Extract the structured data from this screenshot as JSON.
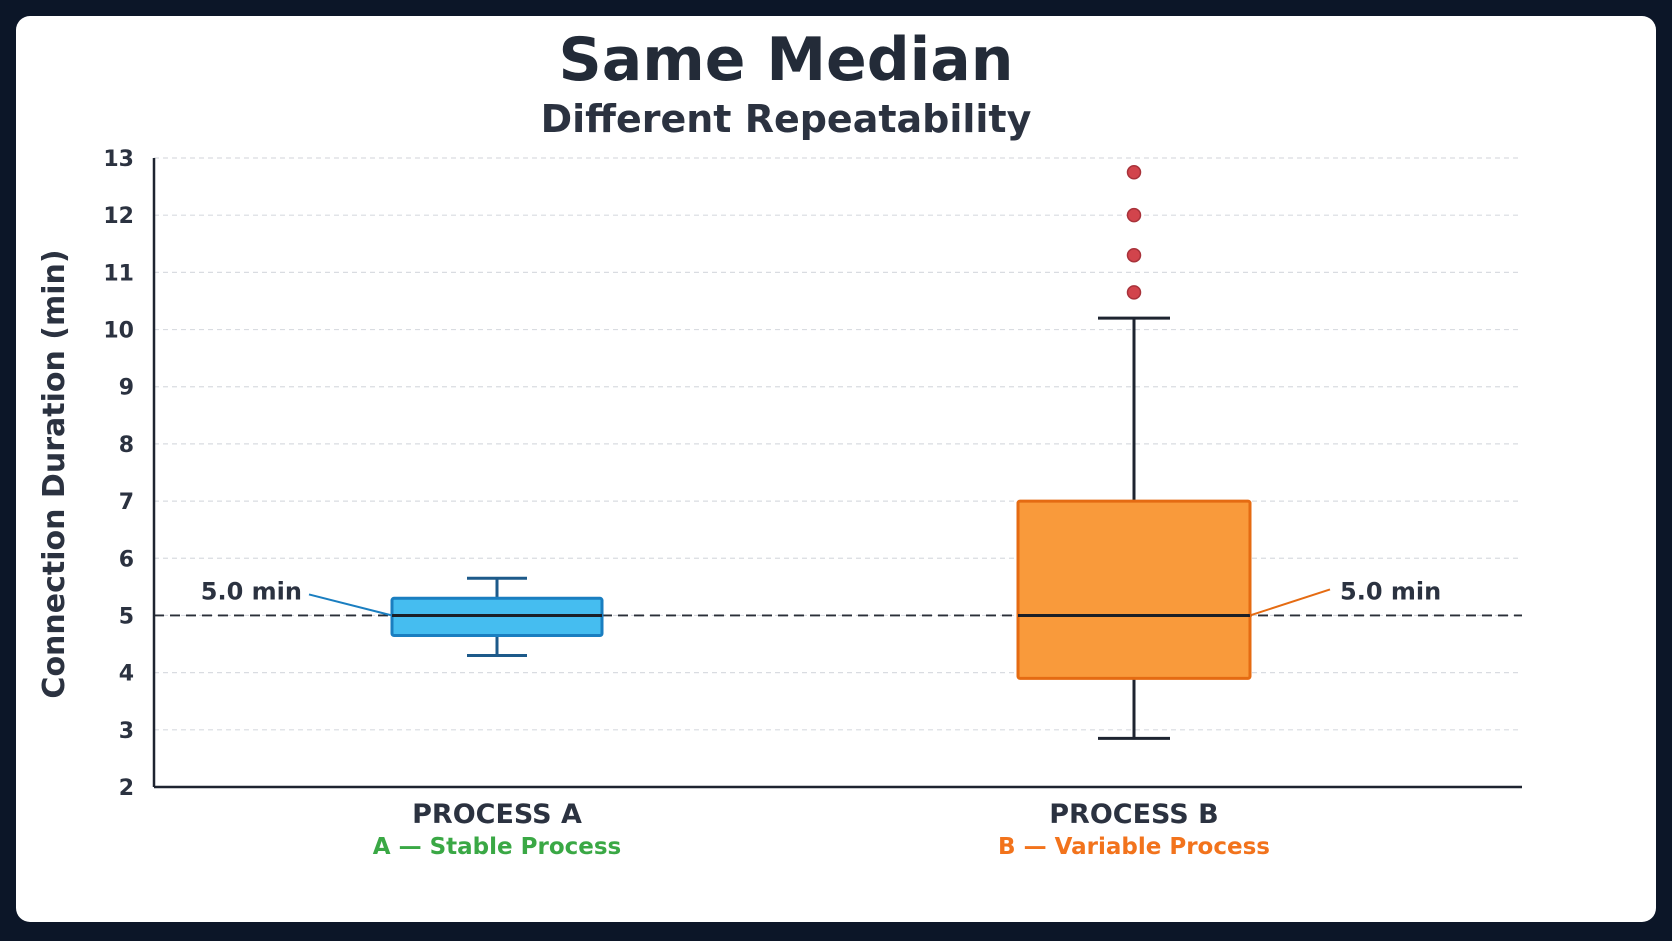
{
  "chart_data": {
    "type": "box",
    "title": "Same Median",
    "subtitle": "Different Repeatability",
    "ylabel": "Connection Duration (min)",
    "xlabel": "",
    "ylim": [
      2,
      13
    ],
    "yticks": [
      2,
      3,
      4,
      5,
      6,
      7,
      8,
      9,
      10,
      11,
      12,
      13
    ],
    "grid": true,
    "reference_line": {
      "value": 5.0,
      "style": "dashed"
    },
    "series": [
      {
        "category": "PROCESS A",
        "caption": "A — Stable Process",
        "caption_color": "#3aa845",
        "whisker_low": 4.3,
        "q1": 4.65,
        "median": 5.0,
        "q3": 5.3,
        "whisker_high": 5.65,
        "outliers": [],
        "fill": "#45bdf0",
        "stroke": "#1a7ec0",
        "median_label": "5.0 min",
        "median_label_side": "left"
      },
      {
        "category": "PROCESS B",
        "caption": "B — Variable Process",
        "caption_color": "#f2731c",
        "whisker_low": 2.85,
        "q1": 3.9,
        "median": 5.0,
        "q3": 7.0,
        "whisker_high": 10.2,
        "outliers": [
          10.65,
          11.3,
          12.0,
          12.75
        ],
        "fill": "#f99a3b",
        "stroke": "#e56b12",
        "median_label": "5.0 min",
        "median_label_side": "right"
      }
    ],
    "colors": {
      "axis": "#1e2430",
      "grid": "#d9dce1",
      "text": "#2b3240",
      "outlier_fill": "#d2444c",
      "outlier_stroke": "#a8323a"
    }
  }
}
